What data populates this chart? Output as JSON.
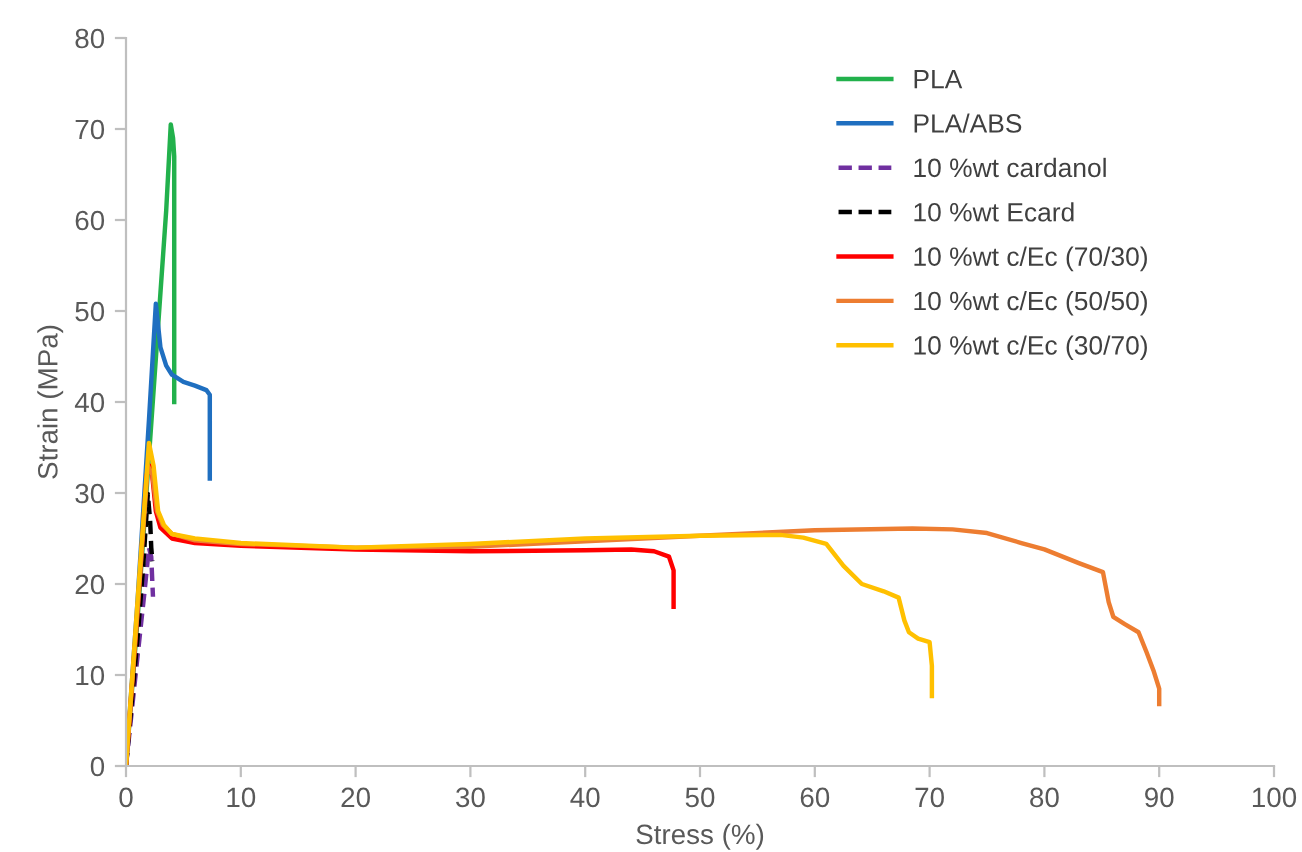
{
  "chart_data": {
    "type": "line",
    "xlabel": "Stress (%)",
    "ylabel": "Strain (MPa)",
    "xlim": [
      0,
      100
    ],
    "ylim": [
      0,
      80
    ],
    "xticks": [
      0,
      10,
      20,
      30,
      40,
      50,
      60,
      70,
      80,
      90,
      100
    ],
    "yticks": [
      0,
      10,
      20,
      30,
      40,
      50,
      60,
      70,
      80
    ],
    "grid": false,
    "legend": "top right",
    "marker": "none",
    "series": [
      {
        "name": "PLA",
        "color": "#22b14c",
        "line_style": "solid",
        "x": [
          0,
          1,
          2,
          3,
          3.5,
          3.9,
          4.1,
          4.2,
          4.2
        ],
        "values": [
          0,
          16,
          34,
          52,
          61,
          70.5,
          69,
          67,
          40
        ]
      },
      {
        "name": "PLA/ABS",
        "color": "#1f6fc0",
        "line_style": "solid",
        "x": [
          0,
          1,
          2,
          2.6,
          3,
          3.5,
          4,
          5,
          6,
          7,
          7.3,
          7.3
        ],
        "values": [
          0,
          18,
          38,
          50.8,
          46,
          44,
          43,
          42.2,
          41.8,
          41.3,
          40.8,
          31.6
        ]
      },
      {
        "name": "10 %wt cardanol",
        "color": "#7030a0",
        "line_style": "dashed",
        "x": [
          0,
          1,
          1.6,
          2,
          2.2,
          2.3,
          2.35
        ],
        "values": [
          0,
          12,
          19,
          24,
          23,
          20,
          18.6
        ]
      },
      {
        "name": "10 %wt Ecard",
        "color": "#000000",
        "line_style": "dashed",
        "x": [
          0,
          1,
          1.5,
          1.9,
          2.1,
          2.2,
          2.3
        ],
        "values": [
          0,
          14,
          22,
          29.9,
          27,
          24,
          22.5
        ]
      },
      {
        "name": "10 %wt c/Ec (70/30)",
        "color": "#ff0000",
        "line_style": "solid",
        "x": [
          0,
          1,
          1.8,
          2.2,
          2.6,
          3,
          4,
          6,
          10,
          20,
          30,
          40,
          44,
          46,
          47.3,
          47.7,
          47.7
        ],
        "values": [
          0,
          17,
          32,
          33,
          28,
          26.2,
          25,
          24.5,
          24.2,
          23.8,
          23.6,
          23.7,
          23.8,
          23.6,
          23,
          21.5,
          17.5
        ]
      },
      {
        "name": "10 %wt c/Ec (50/50)",
        "color": "#ed7d31",
        "line_style": "solid",
        "x": [
          0,
          1,
          1.9,
          2.3,
          2.7,
          3.2,
          4,
          6,
          10,
          20,
          30,
          40,
          50,
          60,
          68.5,
          72,
          75,
          78,
          80,
          83,
          85.1,
          85.6,
          86,
          87,
          88.2,
          88.9,
          89.5,
          90,
          90
        ],
        "values": [
          0,
          17,
          33,
          32,
          28,
          26.5,
          25.5,
          24.8,
          24.4,
          24,
          24.1,
          24.7,
          25.3,
          25.9,
          26.1,
          26,
          25.6,
          24.5,
          23.8,
          22.3,
          21.3,
          18,
          16.4,
          15.6,
          14.7,
          12.5,
          10.5,
          8.5,
          6.8
        ]
      },
      {
        "name": "10 %wt c/Ec (30/70)",
        "color": "#ffc000",
        "line_style": "solid",
        "x": [
          0,
          1,
          2,
          2.4,
          2.8,
          3.3,
          4,
          6,
          10,
          20,
          30,
          40,
          50,
          57,
          59,
          61,
          62.5,
          64.1,
          66,
          67.3,
          67.8,
          68.2,
          69,
          70,
          70.2,
          70.2
        ],
        "values": [
          0,
          18,
          35.5,
          33,
          28,
          26.5,
          25.5,
          25,
          24.5,
          24,
          24.4,
          25,
          25.3,
          25.4,
          25.1,
          24.4,
          22,
          20,
          19.2,
          18.5,
          16,
          14.7,
          14,
          13.6,
          11,
          7.7
        ]
      }
    ]
  }
}
